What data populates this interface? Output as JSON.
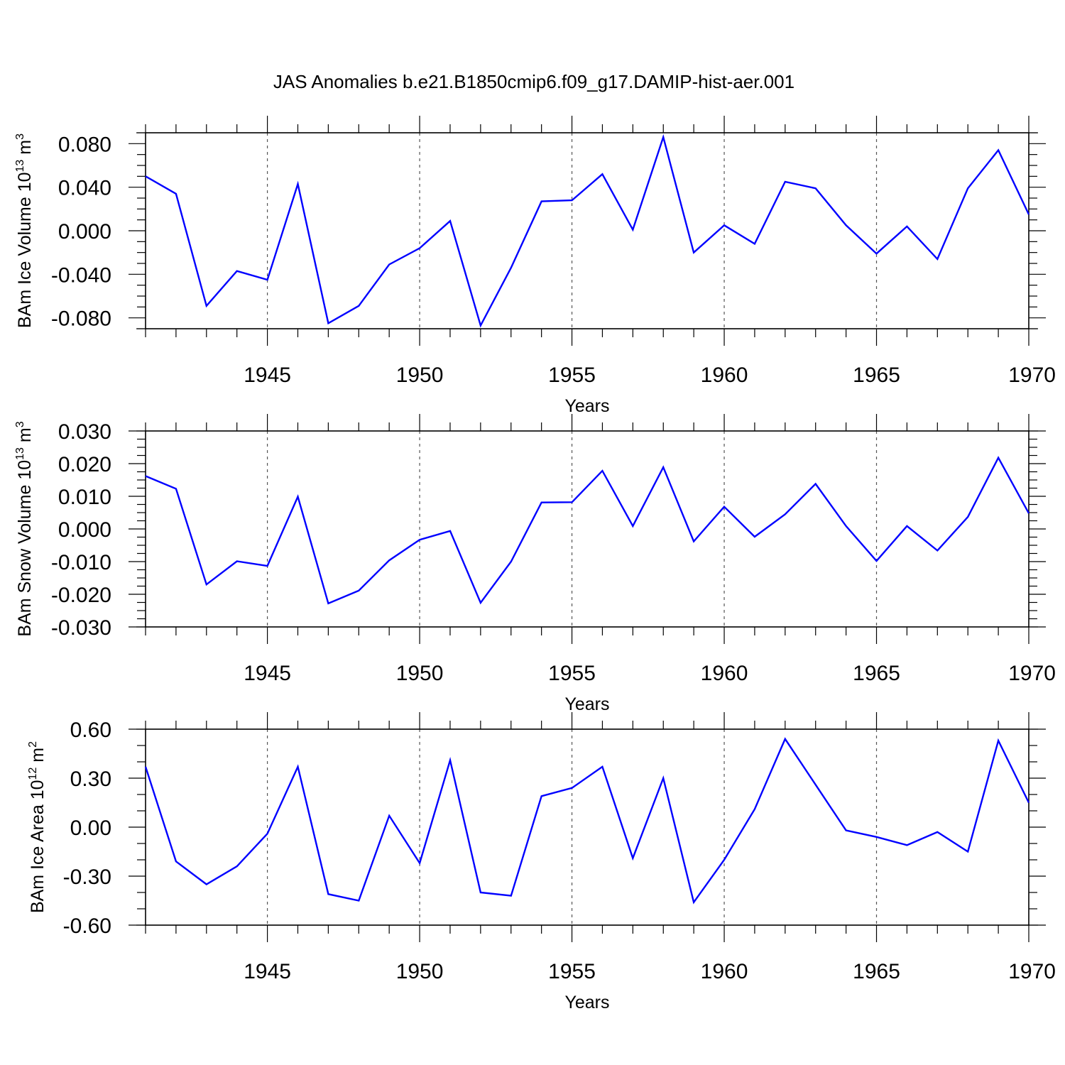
{
  "title": "JAS Anomalies b.e21.B1850cmip6.f09_g17.DAMIP-hist-aer.001",
  "colors": {
    "series": "#0000ff",
    "axes": "#000000",
    "grid": "#555555"
  },
  "chart_data": [
    {
      "type": "line",
      "title": "JAS Anomalies b.e21.B1850cmip6.f09_g17.DAMIP-hist-aer.001",
      "xlabel": "Years",
      "ylabel": {
        "text": "BAm Ice Volume 10",
        "sup": "13",
        "unit": " m",
        "unit_sup": "3"
      },
      "xlim": [
        1941,
        1970
      ],
      "ylim": [
        -0.09,
        0.09
      ],
      "yticks": [
        -0.08,
        -0.04,
        0.0,
        0.04,
        0.08
      ],
      "ytick_labels": [
        "-0.080",
        "-0.040",
        "0.000",
        "0.040",
        "0.080"
      ],
      "yminor": 0.01,
      "xticks": [
        1945,
        1950,
        1955,
        1960,
        1965,
        1970
      ],
      "xtick_labels": [
        "1945",
        "1950",
        "1955",
        "1960",
        "1965",
        "1970"
      ],
      "grid": "vertical dashed at major x ticks",
      "x": [
        1941,
        1942,
        1943,
        1944,
        1945,
        1946,
        1947,
        1948,
        1949,
        1950,
        1951,
        1952,
        1953,
        1954,
        1955,
        1956,
        1957,
        1958,
        1959,
        1960,
        1961,
        1962,
        1963,
        1964,
        1965,
        1966,
        1967,
        1968,
        1969,
        1970
      ],
      "values": [
        0.05,
        0.034,
        -0.069,
        -0.037,
        -0.045,
        0.043,
        -0.085,
        -0.069,
        -0.031,
        -0.016,
        0.009,
        -0.087,
        -0.034,
        0.027,
        0.028,
        0.052,
        0.001,
        0.086,
        -0.02,
        0.005,
        -0.012,
        0.045,
        0.039,
        0.005,
        -0.021,
        0.004,
        -0.026,
        0.039,
        0.074,
        0.015
      ]
    },
    {
      "type": "line",
      "xlabel": "Years",
      "ylabel": {
        "text": "BAm Snow Volume 10",
        "sup": "13",
        "unit": " m",
        "unit_sup": "3"
      },
      "xlim": [
        1941,
        1970
      ],
      "ylim": [
        -0.03,
        0.03
      ],
      "yticks": [
        -0.03,
        -0.02,
        -0.01,
        0.0,
        0.01,
        0.02,
        0.03
      ],
      "ytick_labels": [
        "-0.030",
        "-0.020",
        "-0.010",
        "0.000",
        "0.010",
        "0.020",
        "0.030"
      ],
      "yminor": 0.0025,
      "xticks": [
        1945,
        1950,
        1955,
        1960,
        1965,
        1970
      ],
      "xtick_labels": [
        "1945",
        "1950",
        "1955",
        "1960",
        "1965",
        "1970"
      ],
      "grid": "vertical dashed at major x ticks",
      "x": [
        1941,
        1942,
        1943,
        1944,
        1945,
        1946,
        1947,
        1948,
        1949,
        1950,
        1951,
        1952,
        1953,
        1954,
        1955,
        1956,
        1957,
        1958,
        1959,
        1960,
        1961,
        1962,
        1963,
        1964,
        1965,
        1966,
        1967,
        1968,
        1969,
        1970
      ],
      "values": [
        0.0162,
        0.0123,
        -0.017,
        -0.0099,
        -0.0113,
        0.0099,
        -0.0228,
        -0.0189,
        -0.0096,
        -0.0033,
        -0.0006,
        -0.0226,
        -0.01,
        0.0081,
        0.0082,
        0.0178,
        0.0009,
        0.0189,
        -0.0038,
        0.0068,
        -0.0024,
        0.0045,
        0.0138,
        0.0009,
        -0.0098,
        0.0009,
        -0.0066,
        0.0037,
        0.0218,
        0.0048
      ]
    },
    {
      "type": "line",
      "xlabel": "Years",
      "ylabel": {
        "text": "BAm Ice Area 10",
        "sup": "12",
        "unit": " m",
        "unit_sup": "2"
      },
      "xlim": [
        1941,
        1970
      ],
      "ylim": [
        -0.6,
        0.6
      ],
      "yticks": [
        -0.6,
        -0.3,
        0.0,
        0.3,
        0.6
      ],
      "ytick_labels": [
        "-0.60",
        "-0.30",
        "0.00",
        "0.30",
        "0.60"
      ],
      "yminor": 0.1,
      "xticks": [
        1945,
        1950,
        1955,
        1960,
        1965,
        1970
      ],
      "xtick_labels": [
        "1945",
        "1950",
        "1955",
        "1960",
        "1965",
        "1970"
      ],
      "grid": "vertical dashed at major x ticks",
      "x": [
        1941,
        1942,
        1943,
        1944,
        1945,
        1946,
        1947,
        1948,
        1949,
        1950,
        1951,
        1952,
        1953,
        1954,
        1955,
        1956,
        1957,
        1958,
        1959,
        1960,
        1961,
        1962,
        1963,
        1964,
        1965,
        1966,
        1967,
        1968,
        1969,
        1970
      ],
      "values": [
        0.37,
        -0.21,
        -0.35,
        -0.24,
        -0.04,
        0.37,
        -0.41,
        -0.45,
        0.07,
        -0.22,
        0.41,
        -0.4,
        -0.42,
        0.19,
        0.24,
        0.37,
        -0.19,
        0.3,
        -0.46,
        -0.2,
        0.11,
        0.54,
        0.26,
        -0.02,
        -0.06,
        -0.11,
        -0.03,
        -0.15,
        0.53,
        0.15
      ]
    }
  ]
}
